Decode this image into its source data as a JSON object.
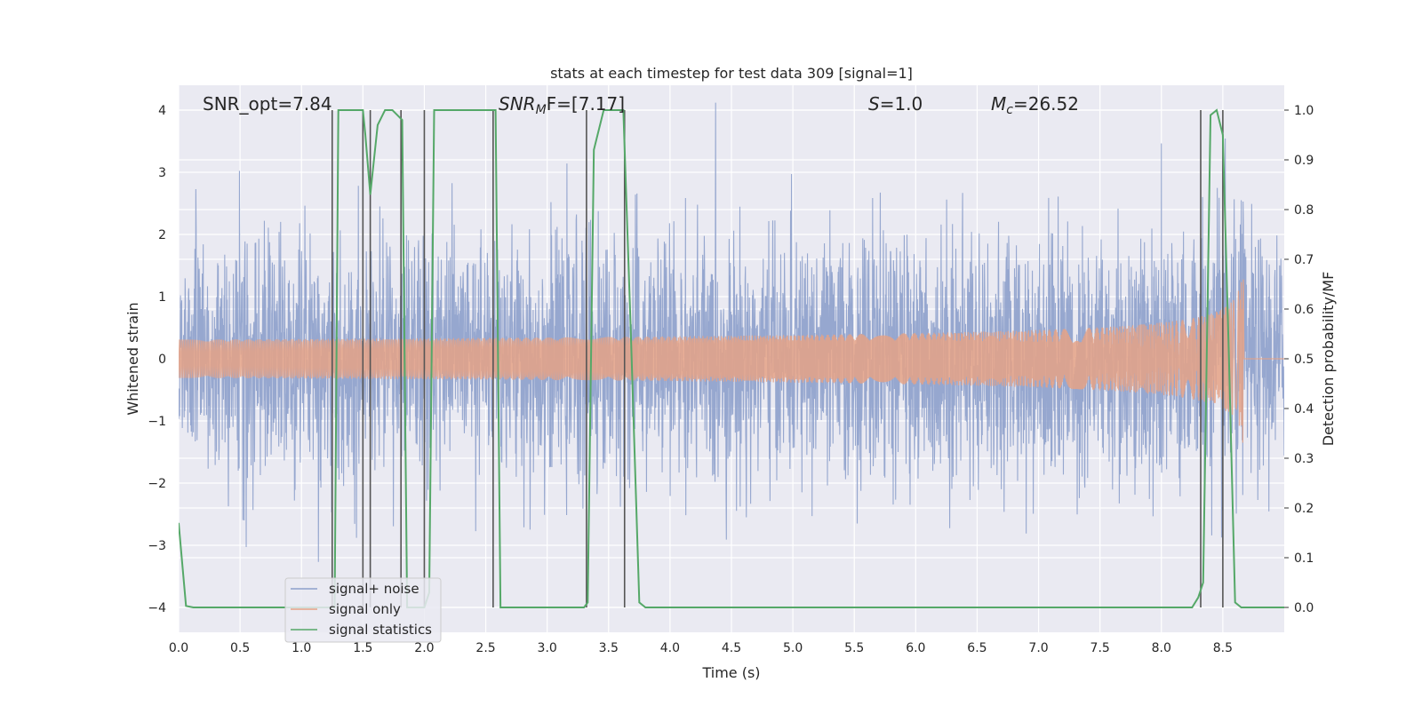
{
  "chart_data": {
    "type": "line",
    "title": "stats at each timestep for test data 309 [signal=1]",
    "xlabel": "Time (s)",
    "ylabel_left": "Whitened strain",
    "ylabel_right": "Detection probability/MF",
    "xlim": [
      0.0,
      9.0
    ],
    "ylim_left": [
      -4.4,
      4.4
    ],
    "ylim_right": [
      -0.05,
      1.05
    ],
    "xticks": [
      "0.0",
      "0.5",
      "1.0",
      "1.5",
      "2.0",
      "2.5",
      "3.0",
      "3.5",
      "4.0",
      "4.5",
      "5.0",
      "5.5",
      "6.0",
      "6.5",
      "7.0",
      "7.5",
      "8.0",
      "8.5"
    ],
    "xtick_values": [
      0.0,
      0.5,
      1.0,
      1.5,
      2.0,
      2.5,
      3.0,
      3.5,
      4.0,
      4.5,
      5.0,
      5.5,
      6.0,
      6.5,
      7.0,
      7.5,
      8.0,
      8.5
    ],
    "yticks_left": [
      "4",
      "3",
      "2",
      "1",
      "0",
      "−1",
      "−2",
      "−3",
      "−4"
    ],
    "ytick_values_left": [
      4,
      3,
      2,
      1,
      0,
      -1,
      -2,
      -3,
      -4
    ],
    "yticks_right": [
      "1.0",
      "0.9",
      "0.8",
      "0.7",
      "0.6",
      "0.5",
      "0.4",
      "0.3",
      "0.2",
      "0.1",
      "0.0"
    ],
    "ytick_values_right": [
      1.0,
      0.9,
      0.8,
      0.7,
      0.6,
      0.5,
      0.4,
      0.3,
      0.2,
      0.1,
      0.0
    ],
    "grid": true,
    "legend_placement": "lower-left",
    "annotations": [
      {
        "id": "snr-opt",
        "text": "SNR_opt=7.84"
      },
      {
        "id": "snr-mf",
        "text": "SNR",
        "sub": "M",
        "rest": "F=[7.17]"
      },
      {
        "id": "s-value",
        "text": "S",
        "rest": "=1.0"
      },
      {
        "id": "mc-value",
        "text": "M",
        "sub": "c",
        "rest": "=26.52"
      }
    ],
    "series": [
      {
        "name": "signal+ noise",
        "color": "#8da0cb",
        "description_kind": "noise",
        "envelope_std": 0.95
      },
      {
        "name": "signal only",
        "color": "#e5a286",
        "kind": "chirp",
        "merger_time": 8.67,
        "peak_amplitude": 1.6
      },
      {
        "name": "signal statistics",
        "color": "#55a868",
        "x": [
          0.0,
          0.06,
          0.12,
          0.5,
          1.0,
          1.24,
          1.27,
          1.3,
          1.5,
          1.52,
          1.56,
          1.62,
          1.68,
          1.74,
          1.78,
          1.82,
          1.86,
          1.93,
          2.0,
          2.04,
          2.08,
          2.5,
          2.58,
          2.62,
          2.7,
          3.0,
          3.3,
          3.33,
          3.38,
          3.46,
          3.55,
          3.62,
          3.68,
          3.75,
          3.8,
          4.5,
          5.5,
          6.5,
          7.5,
          8.0,
          8.25,
          8.3,
          8.34,
          8.4,
          8.45,
          8.5,
          8.55,
          8.6,
          8.65,
          8.7,
          8.8,
          9.0
        ],
        "y": [
          0.17,
          0.003,
          0.0,
          0.0,
          0.0,
          0.0,
          0.0,
          1.0,
          1.0,
          0.95,
          0.83,
          0.97,
          1.0,
          1.0,
          0.99,
          0.98,
          0.0,
          0.0,
          0.0,
          0.03,
          1.0,
          1.0,
          1.0,
          0.0,
          0.0,
          0.0,
          0.0,
          0.01,
          0.92,
          1.0,
          1.0,
          1.0,
          0.56,
          0.01,
          0.0,
          0.0,
          0.0,
          0.0,
          0.0,
          0.0,
          0.0,
          0.02,
          0.05,
          0.99,
          1.0,
          0.95,
          0.5,
          0.01,
          0.0,
          0.0,
          0.0,
          0.0
        ]
      }
    ],
    "vertical_lines_x": [
      1.25,
      1.5,
      1.56,
      1.81,
      2.0,
      2.56,
      3.32,
      3.63,
      8.32,
      8.5
    ]
  }
}
